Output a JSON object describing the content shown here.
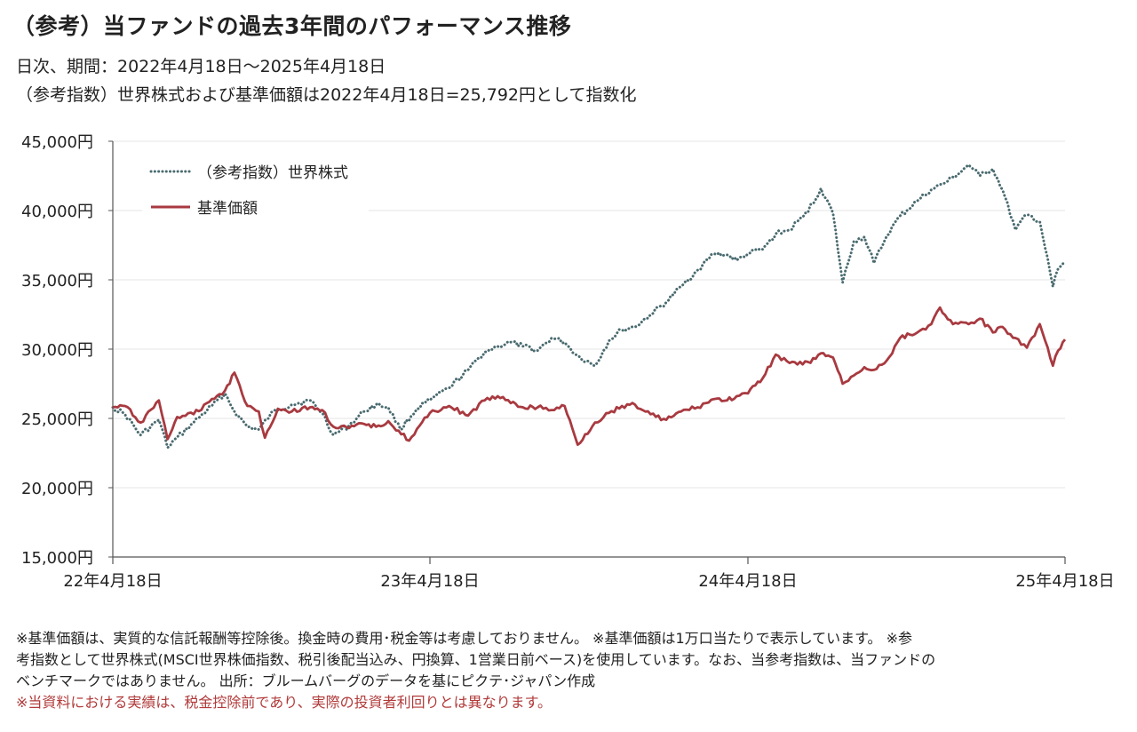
{
  "title": "（参考）当ファンドの過去3年間のパフォーマンス推移",
  "subtitle_period": "日次、期間：2022年4月18日～2025年4月18日",
  "subtitle_index": "（参考指数）世界株式および基準価額は2022年4月18日=25,792円として指数化",
  "notes": {
    "line1": "※基準価額は、実質的な信託報酬等控除後。換金時の費用･税金等は考慮しておりません。 ※基準価額は1万口当たりで表示しています。 ※参",
    "line2": "考指数として世界株式(MSCI世界株価指数、税引後配当込み、円換算、1営業日前ベース)を使用しています。なお、当参考指数は、当ファンドの",
    "line3": "ベンチマークではありません。 出所：ブルームバーグのデータを基にピクテ･ジャパン作成",
    "disclaimer": "※当資料における実績は、税金控除前であり、実際の投資者利回りとは異なります。"
  },
  "colors": {
    "nav": "#a83a40",
    "index": "#4a6b70",
    "grid": "#e6e6e6",
    "axis": "#555555"
  },
  "chart_data": {
    "type": "line",
    "title": "（参考）当ファンドの過去3年間のパフォーマンス推移",
    "xlim": [
      "2022-04-18",
      "2025-04-18"
    ],
    "ylim": [
      15000,
      45000
    ],
    "yticks": [
      15000,
      20000,
      25000,
      30000,
      35000,
      40000,
      45000
    ],
    "ytick_labels": [
      "15,000円",
      "20,000円",
      "25,000円",
      "30,000円",
      "35,000円",
      "40,000円",
      "45,000円"
    ],
    "xticks": [
      "2022-04-18",
      "2023-04-18",
      "2024-04-18",
      "2025-04-18"
    ],
    "xtick_labels": [
      "22年4月18日",
      "23年4月18日",
      "24年4月18日",
      "25年4月18日"
    ],
    "grid": "horizontal",
    "legend": "top-left",
    "series": [
      {
        "name": "（参考指数）世界株式",
        "style": "dotted",
        "color": "#4a6b70",
        "points": [
          [
            "2022-04-18",
            25792
          ],
          [
            "2022-05-02",
            25300
          ],
          [
            "2022-05-20",
            23800
          ],
          [
            "2022-06-10",
            24900
          ],
          [
            "2022-06-20",
            22900
          ],
          [
            "2022-07-01",
            23600
          ],
          [
            "2022-07-20",
            24700
          ],
          [
            "2022-08-10",
            25900
          ],
          [
            "2022-08-25",
            26800
          ],
          [
            "2022-09-05",
            25500
          ],
          [
            "2022-09-20",
            24400
          ],
          [
            "2022-10-03",
            24200
          ],
          [
            "2022-10-20",
            25500
          ],
          [
            "2022-11-10",
            26000
          ],
          [
            "2022-12-01",
            26300
          ],
          [
            "2022-12-15",
            25400
          ],
          [
            "2022-12-28",
            23800
          ],
          [
            "2023-01-15",
            24500
          ],
          [
            "2023-02-01",
            25500
          ],
          [
            "2023-02-15",
            26000
          ],
          [
            "2023-03-01",
            25800
          ],
          [
            "2023-03-15",
            24200
          ],
          [
            "2023-04-03",
            25700
          ],
          [
            "2023-04-18",
            26300
          ],
          [
            "2023-05-10",
            27200
          ],
          [
            "2023-06-01",
            28500
          ],
          [
            "2023-06-20",
            29800
          ],
          [
            "2023-07-05",
            30200
          ],
          [
            "2023-07-20",
            30500
          ],
          [
            "2023-08-03",
            30200
          ],
          [
            "2023-08-20",
            29900
          ],
          [
            "2023-09-05",
            30800
          ],
          [
            "2023-09-20",
            30500
          ],
          [
            "2023-10-05",
            29500
          ],
          [
            "2023-10-25",
            28800
          ],
          [
            "2023-11-10",
            30600
          ],
          [
            "2023-11-25",
            31400
          ],
          [
            "2023-12-10",
            31600
          ],
          [
            "2023-12-28",
            32500
          ],
          [
            "2024-01-15",
            33400
          ],
          [
            "2024-02-01",
            34500
          ],
          [
            "2024-02-20",
            35700
          ],
          [
            "2024-03-10",
            36900
          ],
          [
            "2024-03-25",
            36800
          ],
          [
            "2024-04-05",
            36400
          ],
          [
            "2024-04-18",
            36900
          ],
          [
            "2024-05-05",
            37200
          ],
          [
            "2024-05-20",
            38300
          ],
          [
            "2024-06-05",
            38600
          ],
          [
            "2024-06-20",
            39500
          ],
          [
            "2024-07-05",
            40800
          ],
          [
            "2024-07-11",
            41600
          ],
          [
            "2024-07-25",
            39800
          ],
          [
            "2024-08-05",
            34800
          ],
          [
            "2024-08-18",
            37800
          ],
          [
            "2024-08-30",
            38100
          ],
          [
            "2024-09-10",
            36200
          ],
          [
            "2024-09-25",
            38200
          ],
          [
            "2024-10-10",
            39600
          ],
          [
            "2024-10-30",
            40700
          ],
          [
            "2024-11-15",
            41500
          ],
          [
            "2024-12-01",
            42000
          ],
          [
            "2024-12-15",
            42600
          ],
          [
            "2024-12-28",
            43300
          ],
          [
            "2025-01-10",
            42500
          ],
          [
            "2025-01-25",
            43000
          ],
          [
            "2025-02-05",
            41500
          ],
          [
            "2025-02-20",
            38600
          ],
          [
            "2025-03-05",
            39700
          ],
          [
            "2025-03-20",
            39200
          ],
          [
            "2025-04-04",
            34500
          ],
          [
            "2025-04-10",
            35800
          ],
          [
            "2025-04-18",
            36200
          ]
        ]
      },
      {
        "name": "基準価額",
        "style": "solid",
        "color": "#a83a40",
        "points": [
          [
            "2022-04-18",
            25792
          ],
          [
            "2022-05-02",
            25900
          ],
          [
            "2022-05-20",
            24700
          ],
          [
            "2022-06-10",
            26300
          ],
          [
            "2022-06-20",
            23500
          ],
          [
            "2022-07-01",
            25100
          ],
          [
            "2022-07-20",
            25300
          ],
          [
            "2022-08-10",
            26400
          ],
          [
            "2022-08-25",
            27000
          ],
          [
            "2022-09-05",
            28300
          ],
          [
            "2022-09-20",
            25900
          ],
          [
            "2022-10-03",
            25500
          ],
          [
            "2022-10-10",
            23600
          ],
          [
            "2022-10-25",
            25700
          ],
          [
            "2022-11-10",
            25500
          ],
          [
            "2022-12-01",
            25800
          ],
          [
            "2022-12-15",
            25600
          ],
          [
            "2022-12-28",
            24400
          ],
          [
            "2023-01-15",
            24300
          ],
          [
            "2023-02-01",
            24600
          ],
          [
            "2023-02-15",
            24400
          ],
          [
            "2023-03-01",
            24800
          ],
          [
            "2023-03-25",
            23400
          ],
          [
            "2023-04-18",
            25400
          ],
          [
            "2023-05-10",
            25900
          ],
          [
            "2023-06-01",
            25200
          ],
          [
            "2023-06-20",
            26300
          ],
          [
            "2023-07-05",
            26600
          ],
          [
            "2023-07-20",
            26100
          ],
          [
            "2023-08-03",
            25800
          ],
          [
            "2023-08-20",
            25800
          ],
          [
            "2023-09-05",
            25600
          ],
          [
            "2023-09-20",
            25900
          ],
          [
            "2023-10-05",
            23100
          ],
          [
            "2023-10-25",
            24700
          ],
          [
            "2023-11-10",
            25400
          ],
          [
            "2023-11-25",
            25900
          ],
          [
            "2023-12-10",
            26000
          ],
          [
            "2023-12-28",
            25300
          ],
          [
            "2024-01-15",
            24900
          ],
          [
            "2024-02-01",
            25500
          ],
          [
            "2024-02-20",
            25800
          ],
          [
            "2024-03-10",
            26400
          ],
          [
            "2024-03-25",
            26300
          ],
          [
            "2024-04-05",
            26600
          ],
          [
            "2024-04-18",
            26800
          ],
          [
            "2024-05-05",
            27900
          ],
          [
            "2024-05-20",
            29600
          ],
          [
            "2024-06-05",
            29000
          ],
          [
            "2024-06-20",
            28900
          ],
          [
            "2024-07-05",
            29300
          ],
          [
            "2024-07-11",
            29700
          ],
          [
            "2024-07-25",
            29400
          ],
          [
            "2024-08-05",
            27500
          ],
          [
            "2024-08-18",
            28100
          ],
          [
            "2024-08-30",
            28700
          ],
          [
            "2024-09-10",
            28500
          ],
          [
            "2024-09-25",
            29200
          ],
          [
            "2024-10-10",
            30800
          ],
          [
            "2024-10-30",
            31200
          ],
          [
            "2024-11-15",
            31800
          ],
          [
            "2024-11-25",
            33000
          ],
          [
            "2024-12-10",
            31800
          ],
          [
            "2024-12-28",
            31800
          ],
          [
            "2025-01-10",
            32200
          ],
          [
            "2025-01-25",
            31200
          ],
          [
            "2025-02-05",
            31600
          ],
          [
            "2025-02-20",
            30800
          ],
          [
            "2025-03-05",
            30100
          ],
          [
            "2025-03-20",
            31800
          ],
          [
            "2025-04-04",
            28800
          ],
          [
            "2025-04-10",
            29900
          ],
          [
            "2025-04-18",
            30700
          ]
        ]
      }
    ]
  }
}
